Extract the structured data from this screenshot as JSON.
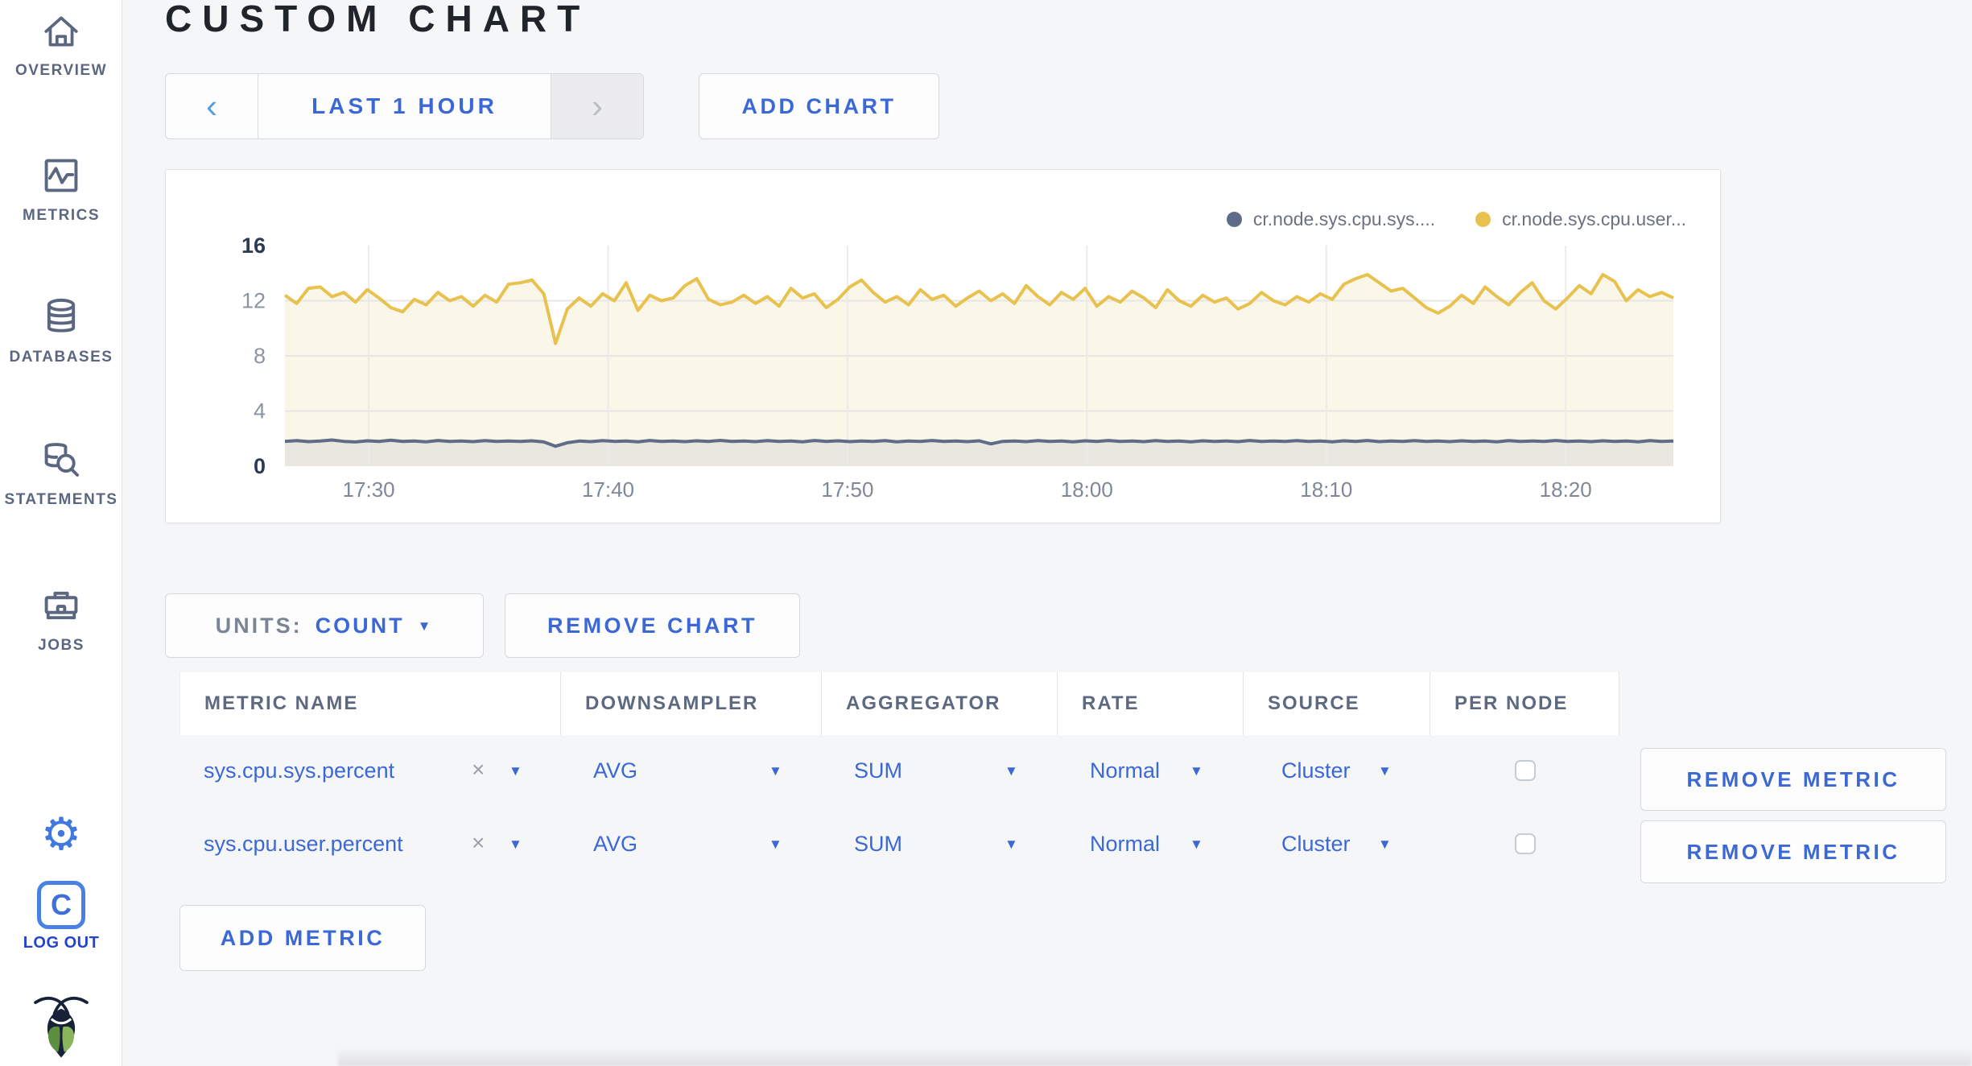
{
  "page_title": "CUSTOM CHART",
  "icons": {
    "chevron_left": "‹",
    "chevron_right": "›",
    "caret_down": "▼",
    "close": "×",
    "gear": "⚙",
    "logout_letter": "C"
  },
  "colors": {
    "accent_blue": "#3c68d6",
    "series_sys": "#5f6c87",
    "series_user": "#e8c14f"
  },
  "sidebar": {
    "items": [
      {
        "label": "OVERVIEW"
      },
      {
        "label": "METRICS"
      },
      {
        "label": "DATABASES"
      },
      {
        "label": "STATEMENTS"
      },
      {
        "label": "JOBS"
      }
    ],
    "log_out_label": "LOG OUT"
  },
  "toolbar": {
    "time_range_label": "LAST 1 HOUR",
    "add_chart_label": "ADD CHART"
  },
  "chart_controls": {
    "units_label": "UNITS:",
    "units_value": "COUNT",
    "remove_chart_label": "REMOVE CHART",
    "add_metric_label": "ADD METRIC"
  },
  "table": {
    "headers": [
      "METRIC NAME",
      "DOWNSAMPLER",
      "AGGREGATOR",
      "RATE",
      "SOURCE",
      "PER NODE"
    ],
    "rows": [
      {
        "metric": "sys.cpu.sys.percent",
        "downsampler": "AVG",
        "aggregator": "SUM",
        "rate": "Normal",
        "source": "Cluster",
        "per_node_checked": false,
        "remove_label": "REMOVE METRIC"
      },
      {
        "metric": "sys.cpu.user.percent",
        "downsampler": "AVG",
        "aggregator": "SUM",
        "rate": "Normal",
        "source": "Cluster",
        "per_node_checked": false,
        "remove_label": "REMOVE METRIC"
      }
    ]
  },
  "chart_data": {
    "type": "area",
    "title": "",
    "xlabel": "",
    "ylabel": "",
    "ylim": [
      0,
      16
    ],
    "y_ticks": [
      0,
      4,
      8,
      12,
      16
    ],
    "y_gridlines": [
      4,
      8,
      12
    ],
    "x_domain_minutes": 58,
    "x_ticks": [
      {
        "label": "17:30",
        "offset_min": 3.5
      },
      {
        "label": "17:40",
        "offset_min": 13.5
      },
      {
        "label": "17:50",
        "offset_min": 23.5
      },
      {
        "label": "18:00",
        "offset_min": 33.5
      },
      {
        "label": "18:10",
        "offset_min": 43.5
      },
      {
        "label": "18:20",
        "offset_min": 53.5
      }
    ],
    "grid": true,
    "legend_position": "top-right",
    "series": [
      {
        "name": "cr.node.sys.cpu.sys....",
        "color": "#5f6c87",
        "fill": "#e9e7df",
        "values": [
          1.8,
          1.85,
          1.78,
          1.82,
          1.9,
          1.8,
          1.76,
          1.84,
          1.8,
          1.88,
          1.79,
          1.83,
          1.77,
          1.86,
          1.8,
          1.82,
          1.78,
          1.85,
          1.8,
          1.83,
          1.79,
          1.84,
          1.76,
          1.45,
          1.7,
          1.82,
          1.78,
          1.85,
          1.8,
          1.83,
          1.77,
          1.86,
          1.8,
          1.82,
          1.78,
          1.84,
          1.8,
          1.87,
          1.79,
          1.83,
          1.78,
          1.85,
          1.8,
          1.82,
          1.77,
          1.86,
          1.8,
          1.84,
          1.78,
          1.83,
          1.8,
          1.85,
          1.77,
          1.82,
          1.79,
          1.86,
          1.8,
          1.83,
          1.78,
          1.84,
          1.62,
          1.8,
          1.83,
          1.78,
          1.85,
          1.8,
          1.82,
          1.77,
          1.84,
          1.8,
          1.86,
          1.79,
          1.83,
          1.78,
          1.85,
          1.8,
          1.82,
          1.77,
          1.84,
          1.8,
          1.83,
          1.78,
          1.86,
          1.8,
          1.82,
          1.79,
          1.85,
          1.8,
          1.83,
          1.77,
          1.84,
          1.8,
          1.86,
          1.78,
          1.82,
          1.8,
          1.85,
          1.79,
          1.83,
          1.78,
          1.84,
          1.8,
          1.82,
          1.77,
          1.85,
          1.8,
          1.83,
          1.79,
          1.86,
          1.8,
          1.82,
          1.78,
          1.84,
          1.8,
          1.83,
          1.77,
          1.85,
          1.8,
          1.82
        ]
      },
      {
        "name": "cr.node.sys.cpu.user...",
        "color": "#e8c14f",
        "fill": "#faf6e8",
        "values": [
          12.4,
          11.8,
          12.9,
          13.0,
          12.3,
          12.6,
          11.9,
          12.8,
          12.2,
          11.5,
          11.2,
          12.1,
          11.7,
          12.6,
          12.0,
          12.3,
          11.6,
          12.4,
          11.9,
          13.2,
          13.3,
          13.5,
          12.5,
          8.9,
          11.4,
          12.2,
          11.6,
          12.5,
          12.0,
          13.3,
          11.3,
          12.4,
          12.0,
          12.2,
          13.1,
          13.6,
          12.1,
          11.7,
          11.9,
          12.4,
          11.8,
          12.3,
          11.6,
          12.9,
          12.2,
          12.5,
          11.5,
          12.1,
          13.0,
          13.5,
          12.6,
          11.9,
          12.3,
          11.7,
          12.8,
          12.1,
          12.4,
          11.6,
          12.2,
          12.7,
          12.0,
          12.5,
          11.8,
          13.1,
          12.3,
          11.7,
          12.6,
          12.1,
          12.9,
          11.6,
          12.3,
          11.9,
          12.7,
          12.2,
          11.5,
          12.8,
          12.0,
          11.6,
          12.4,
          11.9,
          12.2,
          11.4,
          11.8,
          12.6,
          12.0,
          11.7,
          12.3,
          11.9,
          12.5,
          12.1,
          13.2,
          13.6,
          13.9,
          13.3,
          12.7,
          12.9,
          12.2,
          11.5,
          11.1,
          11.6,
          12.4,
          11.8,
          13.0,
          12.3,
          11.7,
          12.6,
          13.3,
          12.0,
          11.4,
          12.2,
          13.1,
          12.5,
          13.9,
          13.4,
          12.0,
          12.8,
          12.3,
          12.6,
          12.2
        ]
      }
    ]
  }
}
